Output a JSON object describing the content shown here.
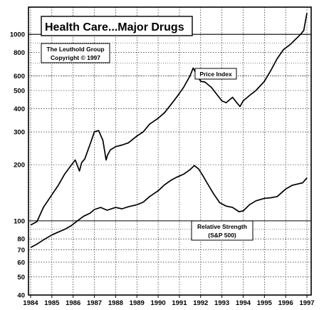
{
  "chart_data": {
    "type": "line",
    "title": "Health Care...Major Drugs",
    "credit": [
      "The Leuthold Group",
      "Copyright © 1997"
    ],
    "xlabel": "",
    "ylabel": "",
    "y_scale": "log",
    "ylim": [
      40,
      1400
    ],
    "xlim": [
      1983.9,
      1997.2
    ],
    "y_ticks": [
      40,
      50,
      60,
      70,
      80,
      100,
      200,
      300,
      400,
      500,
      600,
      800,
      1000
    ],
    "x_ticks": [
      1984,
      1985,
      1986,
      1987,
      1988,
      1989,
      1990,
      1991,
      1992,
      1993,
      1994,
      1995,
      1996,
      1997
    ],
    "grid": true,
    "legend": "none",
    "series": [
      {
        "name": "Price Index",
        "x": [
          1984.0,
          1984.3,
          1984.6,
          1985.0,
          1985.3,
          1985.6,
          1985.9,
          1986.1,
          1986.3,
          1986.4,
          1986.55,
          1986.7,
          1986.85,
          1987.0,
          1987.2,
          1987.4,
          1987.55,
          1987.62,
          1987.75,
          1988.0,
          1988.3,
          1988.6,
          1989.0,
          1989.3,
          1989.6,
          1990.0,
          1990.3,
          1990.6,
          1990.9,
          1991.2,
          1991.5,
          1991.65,
          1991.8,
          1992.0,
          1992.2,
          1992.5,
          1992.8,
          1993.0,
          1993.2,
          1993.5,
          1993.7,
          1993.85,
          1994.0,
          1994.3,
          1994.6,
          1995.0,
          1995.3,
          1995.6,
          1995.9,
          1996.2,
          1996.5,
          1996.7,
          1996.85,
          1997.0
        ],
        "values": [
          95,
          99,
          118,
          138,
          155,
          178,
          198,
          212,
          185,
          205,
          215,
          240,
          268,
          300,
          305,
          270,
          212,
          225,
          240,
          250,
          255,
          262,
          285,
          300,
          330,
          355,
          380,
          420,
          465,
          520,
          600,
          660,
          610,
          560,
          555,
          520,
          470,
          440,
          430,
          460,
          430,
          410,
          440,
          470,
          500,
          560,
          640,
          740,
          830,
          880,
          950,
          1000,
          1050,
          1300
        ]
      },
      {
        "name": "Relative Strength (S&P 500)",
        "x": [
          1984.0,
          1984.3,
          1984.6,
          1985.0,
          1985.3,
          1985.6,
          1985.9,
          1986.2,
          1986.5,
          1986.8,
          1987.0,
          1987.3,
          1987.6,
          1988.0,
          1988.3,
          1988.6,
          1989.0,
          1989.3,
          1989.6,
          1990.0,
          1990.3,
          1990.6,
          1990.9,
          1991.2,
          1991.5,
          1991.7,
          1991.9,
          1992.1,
          1992.3,
          1992.6,
          1992.9,
          1993.2,
          1993.5,
          1993.8,
          1994.0,
          1994.3,
          1994.6,
          1995.0,
          1995.3,
          1995.6,
          1996.0,
          1996.3,
          1996.6,
          1996.8,
          1997.0
        ],
        "values": [
          72,
          75,
          79,
          84,
          87,
          90,
          94,
          100,
          106,
          110,
          115,
          118,
          114,
          118,
          116,
          119,
          122,
          126,
          135,
          145,
          156,
          165,
          172,
          178,
          188,
          198,
          190,
          175,
          160,
          140,
          125,
          120,
          118,
          112,
          113,
          122,
          128,
          132,
          133,
          135,
          148,
          155,
          158,
          160,
          170
        ]
      }
    ],
    "annotations": [
      {
        "text": "Price Index",
        "series": 0
      },
      {
        "text": [
          "Relative Strength",
          "(S&P 500)"
        ],
        "series": 1
      }
    ]
  }
}
